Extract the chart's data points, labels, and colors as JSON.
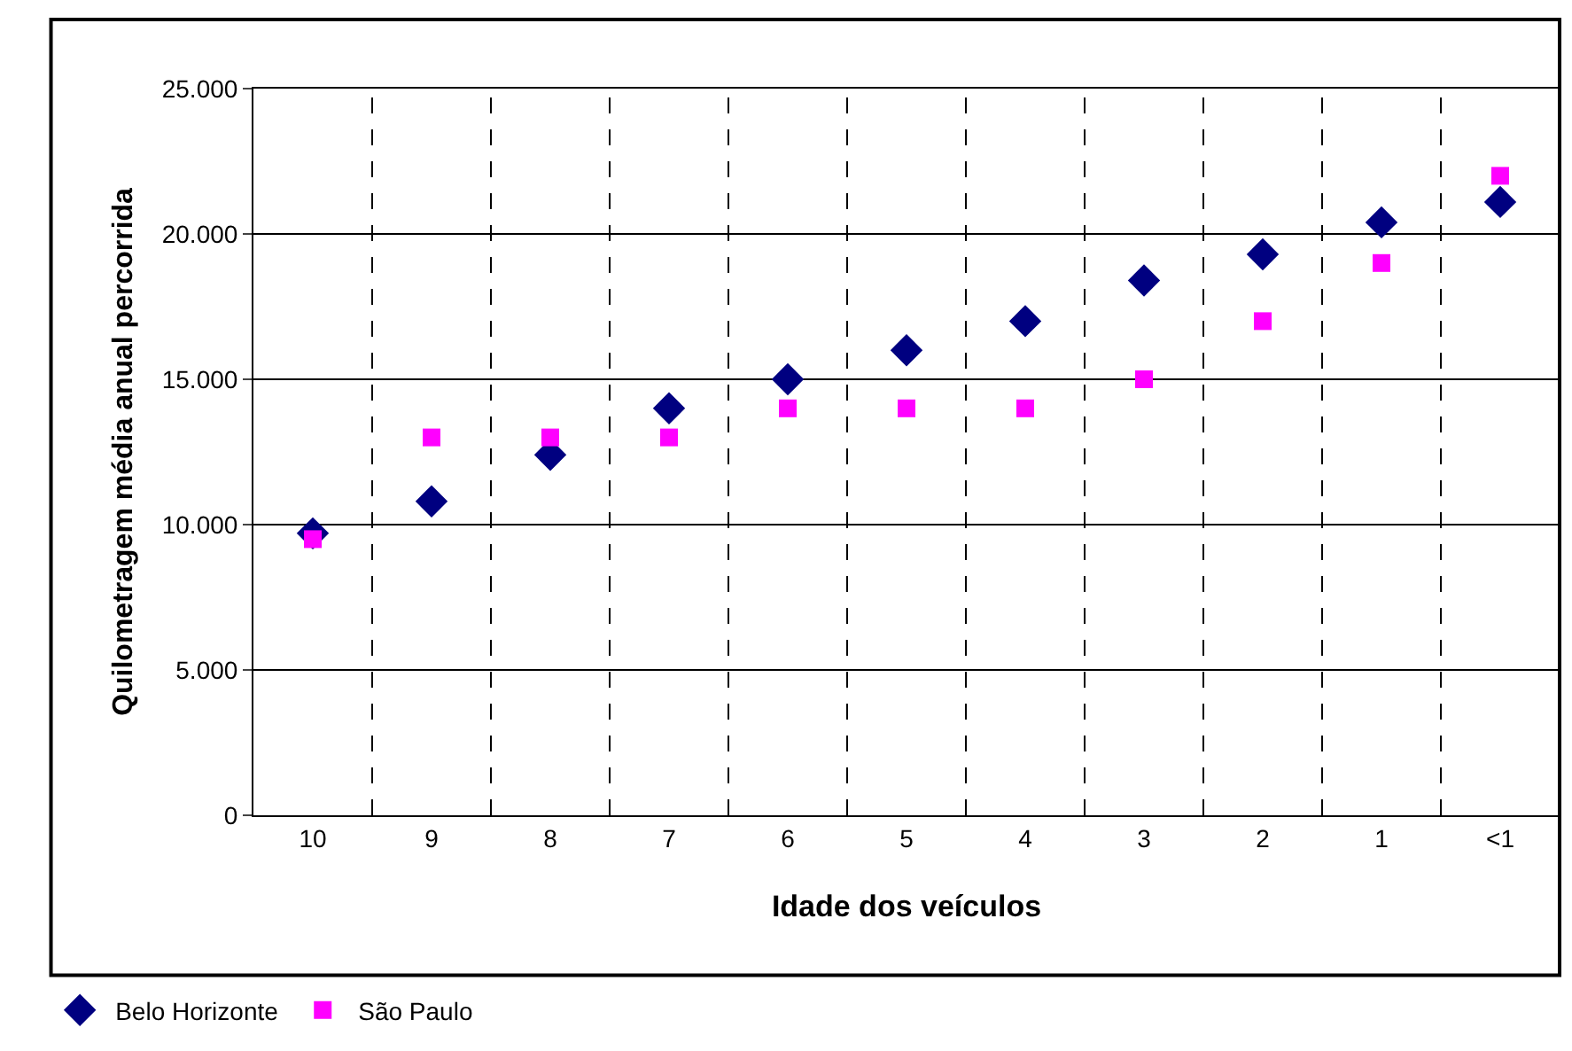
{
  "chart_data": {
    "type": "scatter",
    "xlabel": "Idade dos veículos",
    "ylabel": "Quilometragem média anual percorrida",
    "categories": [
      "10",
      "9",
      "8",
      "7",
      "6",
      "5",
      "4",
      "3",
      "2",
      "1",
      "<1"
    ],
    "series": [
      {
        "name": "Belo Horizonte",
        "color": "#000080",
        "marker": "diamond",
        "values": [
          9700,
          10800,
          12400,
          14000,
          15000,
          16000,
          17000,
          18400,
          19300,
          20400,
          21100
        ]
      },
      {
        "name": "São Paulo",
        "color": "#ff00ff",
        "marker": "square",
        "values": [
          9500,
          13000,
          13000,
          13000,
          14000,
          14000,
          14000,
          15000,
          17000,
          19000,
          22000
        ]
      }
    ],
    "ylim": [
      0,
      25000
    ],
    "yticks": [
      {
        "value": 0,
        "label": "0"
      },
      {
        "value": 5000,
        "label": "5.000"
      },
      {
        "value": 10000,
        "label": "10.000"
      },
      {
        "value": 15000,
        "label": "15.000"
      },
      {
        "value": 20000,
        "label": "20.000"
      },
      {
        "value": 25000,
        "label": "25.000"
      }
    ],
    "grid": true,
    "legend": "bottom left"
  }
}
